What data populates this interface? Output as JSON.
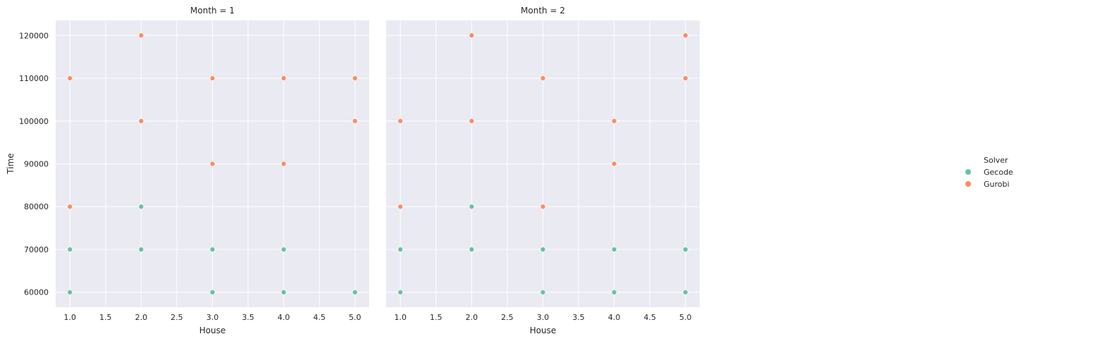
{
  "chart_data": {
    "type": "scatter",
    "ylabel": "Time",
    "legend": {
      "title": "Solver",
      "placement": "center-right",
      "entries": [
        {
          "name": "Gecode",
          "color": "#66c2a5"
        },
        {
          "name": "Gurobi",
          "color": "#fc8d62"
        }
      ]
    },
    "shared_y": true,
    "grid": true,
    "background": "#eaeaf2",
    "panels": [
      {
        "title": "Month = 1",
        "xlabel": "House",
        "xlim": [
          0.8,
          5.2
        ],
        "ylim": [
          56500,
          123500
        ],
        "xticks": [
          "1.0",
          "1.5",
          "2.0",
          "2.5",
          "3.0",
          "3.5",
          "4.0",
          "4.5",
          "5.0"
        ],
        "yticks": [
          "60000",
          "70000",
          "80000",
          "90000",
          "100000",
          "110000",
          "120000"
        ],
        "series": [
          {
            "name": "Gecode",
            "points": [
              [
                1,
                60000
              ],
              [
                1,
                70000
              ],
              [
                2,
                70000
              ],
              [
                2,
                80000
              ],
              [
                3,
                60000
              ],
              [
                3,
                70000
              ],
              [
                4,
                60000
              ],
              [
                4,
                70000
              ],
              [
                5,
                60000
              ]
            ]
          },
          {
            "name": "Gurobi",
            "points": [
              [
                1,
                80000
              ],
              [
                1,
                110000
              ],
              [
                2,
                100000
              ],
              [
                2,
                120000
              ],
              [
                3,
                90000
              ],
              [
                3,
                110000
              ],
              [
                4,
                90000
              ],
              [
                4,
                110000
              ],
              [
                5,
                100000
              ],
              [
                5,
                110000
              ]
            ]
          }
        ]
      },
      {
        "title": "Month = 2",
        "xlabel": "House",
        "xlim": [
          0.8,
          5.2
        ],
        "ylim": [
          56500,
          123500
        ],
        "xticks": [
          "1.0",
          "1.5",
          "2.0",
          "2.5",
          "3.0",
          "3.5",
          "4.0",
          "4.5",
          "5.0"
        ],
        "yticks": [],
        "series": [
          {
            "name": "Gecode",
            "points": [
              [
                1,
                60000
              ],
              [
                1,
                70000
              ],
              [
                2,
                70000
              ],
              [
                2,
                80000
              ],
              [
                3,
                60000
              ],
              [
                3,
                70000
              ],
              [
                4,
                60000
              ],
              [
                4,
                70000
              ],
              [
                5,
                60000
              ],
              [
                5,
                70000
              ]
            ]
          },
          {
            "name": "Gurobi",
            "points": [
              [
                1,
                80000
              ],
              [
                1,
                100000
              ],
              [
                2,
                100000
              ],
              [
                2,
                120000
              ],
              [
                3,
                80000
              ],
              [
                3,
                110000
              ],
              [
                4,
                90000
              ],
              [
                4,
                100000
              ],
              [
                5,
                110000
              ],
              [
                5,
                120000
              ]
            ]
          }
        ]
      }
    ]
  }
}
